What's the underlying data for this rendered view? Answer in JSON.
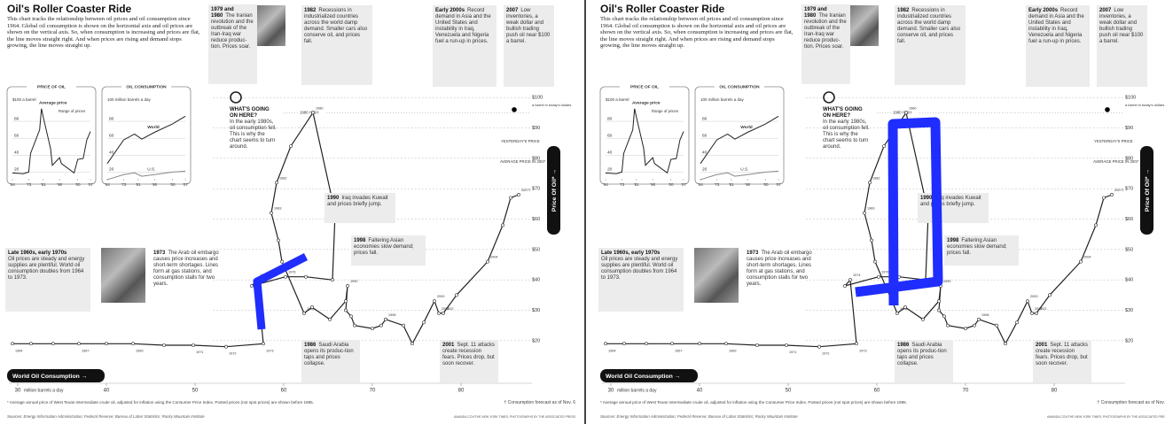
{
  "header": {
    "title": "Oil's Roller Coaster Ride",
    "intro": "This chart tracks the relationship between oil prices and oil consumption since 1964. Global oil consumption is shown on the horizontal axis and oil prices are shown on the vertical axis. So, when consumption is increasing and prices are flat, the line moves straight right. And when prices are rising and demand stops growing, the line moves straight up."
  },
  "notes": [
    {
      "heading": "1979 and 1980",
      "text": "The Iranian revolution and the outbreak of the Iran-Iraq war reduce produc-tion. Prices soar."
    },
    {
      "heading": "1982",
      "text": "Recessions in industrialized countries across the world damp demand. Smaller cars also conserve oil, and prices fall."
    },
    {
      "heading": "Early 2000s",
      "text": "Record demand in Asia and the United States and instability in Iraq, Venezuela and Nigeria fuel a run-up in prices."
    },
    {
      "heading": "2007",
      "text": "Low inventories, a weak dollar and bullish trading push oil near $100 a barrel."
    },
    {
      "heading": "WHAT'S GOING ON HERE?",
      "text": "In the early 1980s, oil consumption fell. This is why the chart seems to turn around."
    },
    {
      "heading": "1990",
      "text": "Iraq invades Kuwait and prices briefly jump."
    },
    {
      "heading": "1998",
      "text": "Faltering Asian economies slow demand; prices fall."
    },
    {
      "heading": "Late 1960s, early 1970s",
      "text": "Oil prices are steady and energy supplies are plentiful. World oil consumption doubles from 1964 to 1973."
    },
    {
      "heading": "1973",
      "text": "The Arab oil embargo causes price increases and short-term shortages. Lines form at gas stations, and consumption stalls for two years."
    },
    {
      "heading": "1986",
      "text": "Saudi Arabia opens its produc-tion taps and prices collapse."
    },
    {
      "heading": "2001",
      "text": "Sept. 11 attacks create recession fears. Prices drop, but soon recover."
    }
  ],
  "footer": {
    "footnote": "* Average annual price of West Texas Intermediate crude oil, adjusted for inflation using the Consumer Price Index. Posted prices (not spot prices) are shown before 1985.",
    "forecast_note": "† Consumption forecast as of Nov. 6",
    "sources": "Sources: Energy Information Administration; Federal Reserve; Bureau of Labor Statistics; Rocky Mountain Institute",
    "credit": "AMANDA COX/THE NEW YORK TIMES; PHOTOGRAPHS BY THE ASSOCIATED PRESS"
  },
  "chart_data": [
    {
      "type": "line",
      "x_label": "World Oil Consumption →",
      "y_label": "Price Of Oil* →",
      "x_unit": "million barrels a day",
      "y_unit": "a barrel in today's dollars",
      "high_label": "1980 HIGH",
      "average_label": "AVERAGE PRICE IN 2007",
      "markers": [
        {
          "label": "YESTERDAY'S PRICE",
          "value": 96
        }
      ],
      "color": "#222222",
      "x": [
        29.4,
        31.5,
        34,
        36.9,
        40,
        43,
        46.5,
        49.8,
        53.5,
        57.7,
        57,
        56.4,
        60.2,
        62.5,
        65.5,
        65.8,
        63.3,
        60.8,
        59.2,
        58.6,
        59.4,
        59.8,
        62.3,
        63.2,
        65.2,
        67,
        67.2,
        67,
        67.6,
        68,
        70,
        71,
        71.5,
        73.5,
        74.5,
        75.8,
        77,
        77.5,
        78,
        79.5,
        83,
        84.7,
        85.6,
        86.5
      ],
      "values": [
        19,
        19,
        19,
        19,
        19,
        19,
        18.5,
        18.5,
        18,
        19,
        40,
        38,
        41,
        41,
        40,
        62,
        95,
        84,
        72,
        62,
        53,
        46,
        29,
        31,
        27,
        33,
        38,
        30,
        28,
        25,
        24,
        25,
        27,
        25,
        19,
        26,
        33,
        29,
        29,
        35,
        46,
        58,
        67,
        68
      ],
      "labels": [
        "1964",
        null,
        null,
        "1967",
        null,
        "1969",
        null,
        "1971",
        "1972",
        "1973",
        "1974",
        null,
        "1976",
        null,
        null,
        null,
        "1980",
        null,
        "1982",
        "1983",
        null,
        null,
        "1986",
        null,
        null,
        null,
        "1990",
        null,
        null,
        null,
        null,
        null,
        "1996",
        null,
        null,
        null,
        "2000",
        "2001",
        "2002",
        null,
        "2004",
        null,
        null,
        "2007†"
      ],
      "xlim": [
        28,
        91.5
      ],
      "ylim": [
        15,
        105
      ],
      "xticks": [
        30,
        40,
        50,
        60,
        70,
        80
      ],
      "yticks": [
        {
          "value": 20,
          "label": "$20"
        },
        {
          "value": 30,
          "label": "$30"
        },
        {
          "value": 40,
          "label": "$40"
        },
        {
          "value": 50,
          "label": "$50"
        },
        {
          "value": 60,
          "label": "$60"
        },
        {
          "value": 70,
          "label": "$70"
        },
        {
          "value": 80,
          "label": "$80"
        },
        {
          "value": 90,
          "label": "$90"
        },
        {
          "value": 100,
          "label": "$100"
        }
      ],
      "grid": true
    },
    {
      "type": "line",
      "title": "PRICE OF OIL",
      "y_unit": "$100 a barrel",
      "annotation": "Range of prices",
      "x": [
        1964,
        1970,
        1973,
        1974,
        1979,
        1980,
        1981,
        1985,
        1986,
        1990,
        1991,
        1998,
        2000,
        2003,
        2005,
        2007
      ],
      "series": [
        {
          "name": "Average price",
          "color": "#222222",
          "values": [
            19,
            18,
            20,
            42,
            70,
            95,
            85,
            48,
            28,
            37,
            30,
            19,
            35,
            36,
            58,
            68
          ]
        }
      ],
      "xlim": [
        1964,
        2007
      ],
      "ylim": [
        12,
        100
      ],
      "xticks": [
        {
          "value": 1964,
          "label": "'64"
        },
        {
          "value": 1973,
          "label": "'73"
        },
        {
          "value": 1981,
          "label": "'81"
        },
        {
          "value": 1990,
          "label": "'90"
        },
        {
          "value": 2000,
          "label": "'00"
        },
        {
          "value": 2007,
          "label": "'07"
        }
      ],
      "yticks": [
        20,
        40,
        60,
        80
      ],
      "grid": true
    },
    {
      "type": "line",
      "title": "OIL CONSUMPTION",
      "y_unit": "100 million barrels a day",
      "x": [
        1964,
        1973,
        1979,
        1983,
        1990,
        2000,
        2007
      ],
      "series": [
        {
          "name": "World",
          "color": "#222222",
          "values": [
            30,
            58,
            65,
            59,
            67,
            77,
            86
          ]
        },
        {
          "name": "U.S.",
          "color": "#888888",
          "values": [
            11,
            17,
            19,
            15,
            17,
            20,
            21
          ]
        }
      ],
      "xlim": [
        1964,
        2007
      ],
      "ylim": [
        12,
        100
      ],
      "xticks": [
        {
          "value": 1964,
          "label": "'64"
        },
        {
          "value": 1973,
          "label": "'73"
        },
        {
          "value": 1981,
          "label": "'81"
        },
        {
          "value": 1990,
          "label": "'90"
        },
        {
          "value": 2000,
          "label": "'00"
        },
        {
          "value": 2007,
          "label": "'07"
        }
      ],
      "yticks": [
        20,
        40,
        60,
        80
      ],
      "grid": true
    }
  ]
}
